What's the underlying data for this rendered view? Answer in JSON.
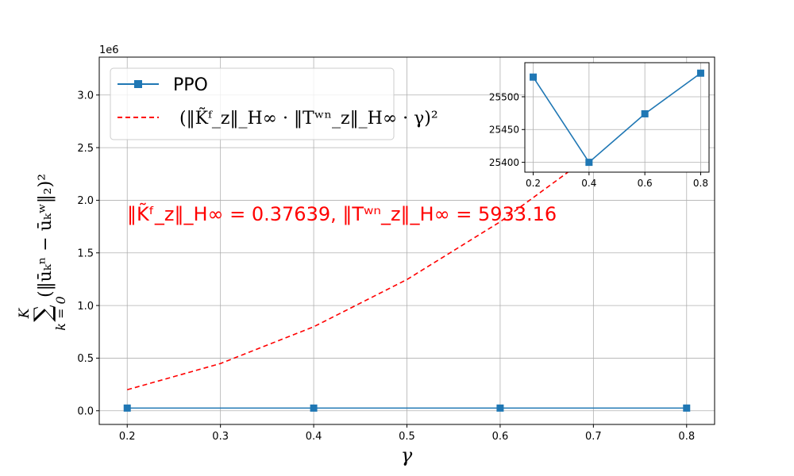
{
  "chart_data": [
    {
      "type": "line",
      "x": [
        0.2,
        0.4,
        0.6,
        0.8
      ],
      "xlabel": "γ",
      "ylabel": "∑ₖ₌₀ᴷ (‖ūₖⁿ − ūₖʷ‖₂)²",
      "ylabel_sum": "∑",
      "ylabel_sum_top": "K",
      "ylabel_sum_bottom": "k = 0",
      "ylabel_term": "(‖ūₖⁿ − ūₖʷ‖₂)²",
      "xlim": [
        0.17,
        0.83
      ],
      "ylim": [
        -0.13,
        3.36
      ],
      "offset_text": "1e6",
      "xticks": [
        0.2,
        0.3,
        0.4,
        0.5,
        0.6,
        0.7,
        0.8
      ],
      "xtick_labels": [
        "0.2",
        "0.3",
        "0.4",
        "0.5",
        "0.6",
        "0.7",
        "0.8"
      ],
      "yticks": [
        0.0,
        0.5,
        1.0,
        1.5,
        2.0,
        2.5,
        3.0
      ],
      "ytick_labels": [
        "0.0",
        "0.5",
        "1.0",
        "1.5",
        "2.0",
        "2.5",
        "3.0"
      ],
      "grid": true,
      "legend_position": "top-left",
      "series": [
        {
          "name": "PPO",
          "style": "solid-square-marker",
          "color": "#1f77b4",
          "values": [
            0.02553,
            0.0254,
            0.02547,
            0.02554
          ]
        },
        {
          "name": "(‖K̃ᶠ_z‖_H∞ · ‖Tʷⁿ_z‖_H∞ · γ)²",
          "style": "dashed",
          "color": "#ff0000",
          "x": [
            0.2,
            0.3,
            0.4,
            0.5,
            0.6,
            0.7,
            0.8
          ],
          "values": [
            0.1995,
            0.4488,
            0.7979,
            1.2467,
            1.7953,
            2.4436,
            3.1916
          ]
        }
      ],
      "annotation": "‖K̃ᶠ_z‖_H∞ = 0.37639, ‖Tʷⁿ_z‖_H∞ = 5933.16",
      "annotation_color": "#ff0000"
    },
    {
      "type": "line",
      "placement": "inset-top-right",
      "x": [
        0.2,
        0.4,
        0.6,
        0.8
      ],
      "xlim": [
        0.17,
        0.83
      ],
      "ylim": [
        25385,
        25552
      ],
      "xticks": [
        0.2,
        0.4,
        0.6,
        0.8
      ],
      "xtick_labels": [
        "0.2",
        "0.4",
        "0.6",
        "0.8"
      ],
      "yticks": [
        25400,
        25450,
        25500
      ],
      "ytick_labels": [
        "25400",
        "25450",
        "25500"
      ],
      "grid": true,
      "series": [
        {
          "name": "PPO",
          "color": "#1f77b4",
          "values": [
            25530,
            25400,
            25474,
            25536
          ]
        }
      ]
    }
  ]
}
